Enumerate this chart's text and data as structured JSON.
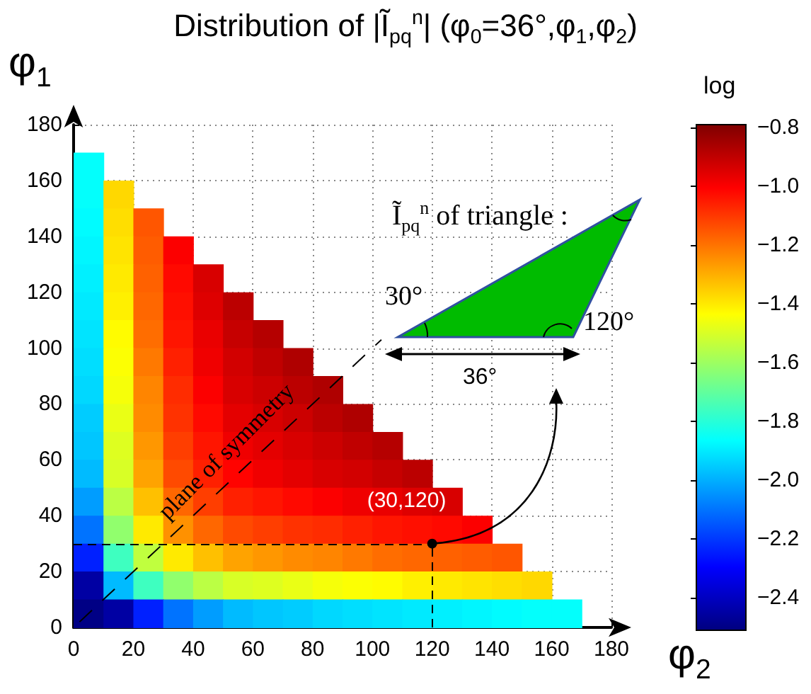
{
  "chart_data": {
    "type": "heatmap",
    "title": "Distribution of |Ĩ$_{pq}$$^{n}$| (φ$_{0}$=36°,φ$_{1}$,φ$_{2}$)",
    "xlabel": "φ$_{2}$",
    "ylabel": "φ$_{1}$",
    "clabel": "log",
    "x": [
      5,
      15,
      25,
      35,
      45,
      55,
      65,
      75,
      85,
      95,
      105,
      115,
      125,
      135,
      145,
      155,
      165
    ],
    "y": [
      165,
      155,
      145,
      135,
      125,
      115,
      105,
      95,
      85,
      75,
      65,
      55,
      45,
      35,
      25,
      15,
      5
    ],
    "cells": [
      [
        -1.86,
        null,
        null,
        null,
        null,
        null,
        null,
        null,
        null,
        null,
        null,
        null,
        null,
        null,
        null,
        null,
        null
      ],
      [
        -1.86,
        -1.37,
        null,
        null,
        null,
        null,
        null,
        null,
        null,
        null,
        null,
        null,
        null,
        null,
        null,
        null,
        null
      ],
      [
        -1.87,
        -1.38,
        -1.15,
        null,
        null,
        null,
        null,
        null,
        null,
        null,
        null,
        null,
        null,
        null,
        null,
        null,
        null
      ],
      [
        -1.88,
        -1.39,
        -1.16,
        -1.0,
        null,
        null,
        null,
        null,
        null,
        null,
        null,
        null,
        null,
        null,
        null,
        null,
        null
      ],
      [
        -1.89,
        -1.4,
        -1.17,
        -1.02,
        -0.94,
        null,
        null,
        null,
        null,
        null,
        null,
        null,
        null,
        null,
        null,
        null,
        null
      ],
      [
        -1.9,
        -1.41,
        -1.18,
        -1.03,
        -0.95,
        -0.89,
        null,
        null,
        null,
        null,
        null,
        null,
        null,
        null,
        null,
        null,
        null
      ],
      [
        -1.91,
        -1.43,
        -1.19,
        -1.04,
        -0.97,
        -0.91,
        -0.88,
        null,
        null,
        null,
        null,
        null,
        null,
        null,
        null,
        null,
        null
      ],
      [
        -1.92,
        -1.44,
        -1.21,
        -1.06,
        -0.98,
        -0.93,
        -0.9,
        -0.87,
        null,
        null,
        null,
        null,
        null,
        null,
        null,
        null,
        null
      ],
      [
        -1.93,
        -1.45,
        -1.23,
        -1.08,
        -1.0,
        -0.94,
        -0.92,
        -0.89,
        -0.87,
        null,
        null,
        null,
        null,
        null,
        null,
        null,
        null
      ],
      [
        -1.95,
        -1.47,
        -1.24,
        -1.09,
        -1.02,
        -0.96,
        -0.94,
        -0.92,
        -0.89,
        -0.87,
        null,
        null,
        null,
        null,
        null,
        null,
        null
      ],
      [
        -1.96,
        -1.49,
        -1.26,
        -1.11,
        -1.04,
        -0.98,
        -0.96,
        -0.94,
        -0.92,
        -0.9,
        -0.88,
        null,
        null,
        null,
        null,
        null,
        null
      ],
      [
        -1.98,
        -1.5,
        -1.28,
        -1.13,
        -1.06,
        -1.01,
        -0.98,
        -0.96,
        -0.94,
        -0.93,
        -0.91,
        -0.89,
        null,
        null,
        null,
        null,
        null
      ],
      [
        -2.03,
        -1.55,
        -1.33,
        -1.18,
        -1.11,
        -1.06,
        -1.04,
        -1.02,
        -1.0,
        -0.98,
        -0.97,
        -0.95,
        -0.94,
        null,
        null,
        null,
        null
      ],
      [
        -2.1,
        -1.62,
        -1.4,
        -1.25,
        -1.18,
        -1.13,
        -1.11,
        -1.09,
        -1.08,
        -1.06,
        -1.04,
        -1.03,
        -1.02,
        -1.0,
        null,
        null,
        null
      ],
      [
        -2.24,
        -1.76,
        -1.54,
        -1.4,
        -1.33,
        -1.28,
        -1.26,
        -1.24,
        -1.23,
        -1.21,
        -1.19,
        -1.18,
        -1.17,
        -1.16,
        -1.15,
        null,
        null
      ],
      [
        -2.45,
        -1.98,
        -1.76,
        -1.62,
        -1.55,
        -1.5,
        -1.49,
        -1.47,
        -1.45,
        -1.44,
        -1.43,
        -1.41,
        -1.4,
        -1.39,
        -1.38,
        -1.37,
        null
      ],
      [
        -2.5,
        -2.45,
        -2.24,
        -2.1,
        -2.03,
        -1.98,
        -1.96,
        -1.95,
        -1.93,
        -1.92,
        -1.91,
        -1.9,
        -1.89,
        -1.88,
        -1.87,
        -1.86,
        -1.86
      ]
    ],
    "xlim": [
      0,
      180
    ],
    "ylim": [
      0,
      180
    ],
    "xticks": [
      0,
      20,
      40,
      60,
      80,
      100,
      120,
      140,
      160,
      180
    ],
    "yticks": [
      0,
      20,
      40,
      60,
      80,
      100,
      120,
      140,
      160,
      180
    ],
    "grid": true,
    "ref_lines": [
      {
        "axis": "y",
        "value": 30
      },
      {
        "axis": "x",
        "value": 120
      }
    ],
    "clim": [
      -2.51,
      -0.79
    ],
    "cticks": [
      {
        "value": -2.4,
        "label": "−2.4"
      },
      {
        "value": -2.2,
        "label": "−2.2"
      },
      {
        "value": -2,
        "label": "−2.0"
      },
      {
        "value": -1.8,
        "label": "−1.8"
      },
      {
        "value": -1.6,
        "label": "−1.6"
      },
      {
        "value": -1.4,
        "label": "−1.4"
      },
      {
        "value": -1.2,
        "label": "−1.2"
      },
      {
        "value": -1,
        "label": "−1.0"
      },
      {
        "value": -0.8,
        "label": "−0.8"
      }
    ],
    "annotations": [
      "Ĩ$_{pq}$$^{n}$ of triangle :",
      "30°",
      "120°",
      "36°",
      {
        "text": "(30,120)",
        "x": 120,
        "y": 30
      },
      "plane of symmetry"
    ]
  }
}
